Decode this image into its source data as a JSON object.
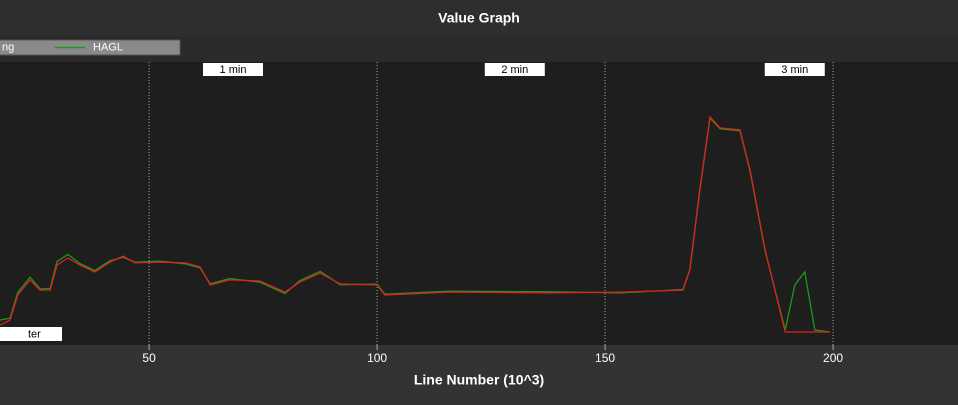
{
  "chart_data": {
    "type": "line",
    "title": "Value Graph",
    "x_label": "Line Number (10^3)",
    "x": [
      17.3,
      19.5,
      21.2,
      23.9,
      26.1,
      28.3,
      29.8,
      32.2,
      34.8,
      38.1,
      41.4,
      44.3,
      46.9,
      52.4,
      57.9,
      61.2,
      63.4,
      67.7,
      74.3,
      79.8,
      83.1,
      87.5,
      91.9,
      100,
      101.7,
      116,
      137.9,
      153.3,
      167.1,
      168.6,
      170.8,
      173,
      175.2,
      179.6,
      181.8,
      185.1,
      189.5,
      191.6,
      193.8,
      196,
      199.3
    ],
    "series": [
      {
        "name": "ng",
        "color": "#e02020",
        "values": [
          7,
          8.8,
          17.7,
          23,
          19.4,
          19.4,
          28.3,
          30.7,
          28.3,
          25.8,
          29.3,
          31.4,
          29,
          29.3,
          29,
          27.6,
          21.2,
          23,
          22.6,
          18.7,
          22.3,
          25.4,
          21.6,
          21.2,
          17.7,
          18.7,
          18.4,
          18.7,
          19.4,
          26.5,
          54.8,
          80.6,
          76.7,
          76,
          61.8,
          33.6,
          4.6,
          4.6,
          4.6,
          4.6,
          4.6
        ]
      },
      {
        "name": "HAGL",
        "color": "#1a9a1a",
        "values": [
          8.8,
          9.5,
          18.5,
          24,
          19.8,
          20,
          29.5,
          32,
          28.8,
          26.3,
          29.8,
          31,
          29.3,
          29.6,
          28.7,
          27.2,
          21.6,
          23.5,
          22.2,
          18.2,
          22.8,
          26,
          21.3,
          21.5,
          18,
          19,
          18.8,
          18.4,
          19.6,
          26.8,
          55.2,
          80.2,
          76.4,
          75.7,
          61.3,
          33.2,
          5.3,
          21.2,
          25.8,
          5.3,
          4.6
        ]
      }
    ],
    "xlim": [
      17.3,
      227.4
    ],
    "xticks": [
      50,
      100,
      150,
      200
    ],
    "ylim": [
      0,
      100
    ],
    "grid": true,
    "annotations": [
      {
        "label": "1 min",
        "x": 68.4
      },
      {
        "label": "2 min",
        "x": 130.2
      },
      {
        "label": "3 min",
        "x": 191.6
      }
    ],
    "corner_label": "ter"
  }
}
